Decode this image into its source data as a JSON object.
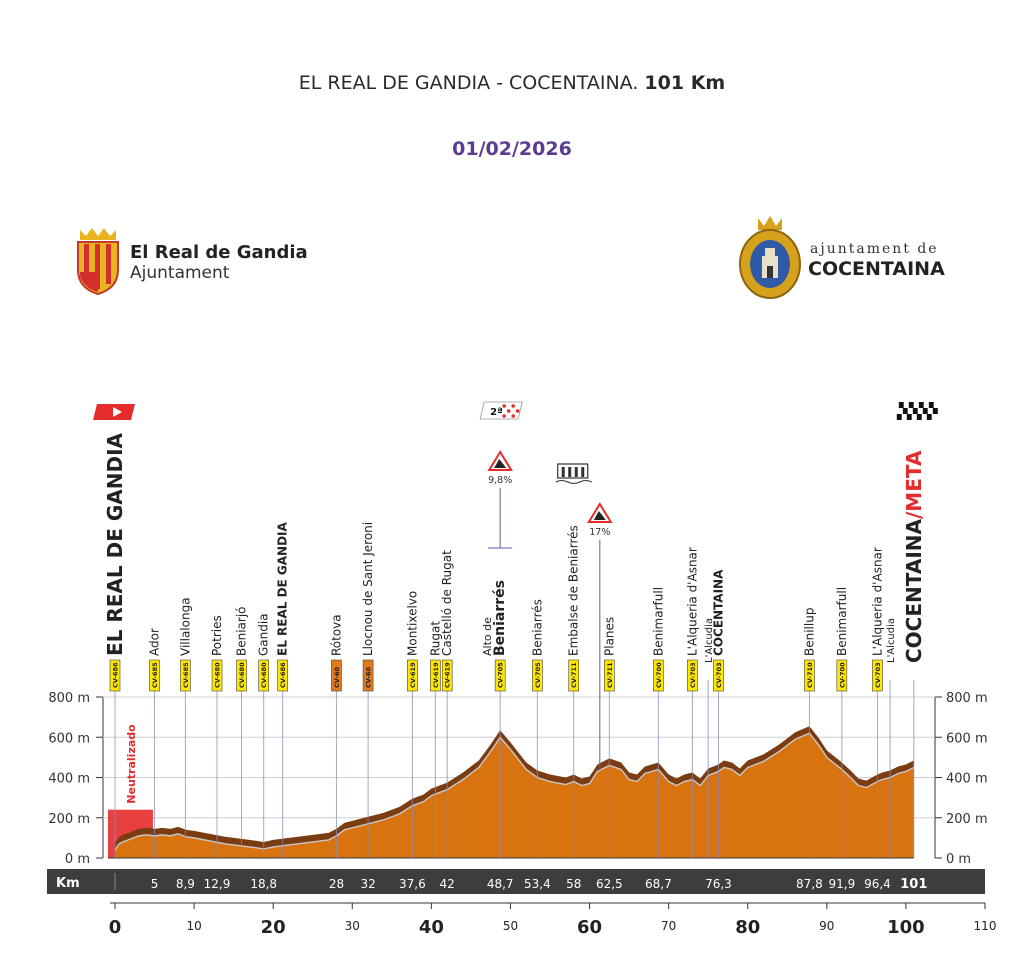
{
  "header": {
    "title_route": "EL REAL DE GANDIA - COCENTAINA.",
    "title_distance": "101 Km",
    "date": "01/02/2026"
  },
  "logos": {
    "left": {
      "name": "El Real de Gandia",
      "sub": "Ajuntament"
    },
    "right": {
      "line1": "ajuntament de",
      "line2": "COCENTAINA"
    }
  },
  "colors": {
    "profile_fill": "#d9730f",
    "profile_ridge": "#7a3c10",
    "road_tag": "#ffe600",
    "neutral_zone": "#e52b2b",
    "km_band": "#3d3d3d",
    "date": "#5b3c8e"
  },
  "chart_data": {
    "type": "area",
    "title": "EL REAL DE GANDIA - COCENTAINA. 101 Km",
    "xlabel": "",
    "ylabel": "",
    "xlim": [
      0,
      110
    ],
    "ylim": [
      0,
      800
    ],
    "y_ticks": [
      "0 m",
      "200 m",
      "400 m",
      "600 m",
      "800 m"
    ],
    "y_tick_values": [
      0,
      200,
      400,
      600,
      800
    ],
    "x_ticks": [
      "0",
      "10",
      "20",
      "30",
      "40",
      "50",
      "60",
      "70",
      "80",
      "90",
      "100",
      "110"
    ],
    "x_tick_values": [
      0,
      10,
      20,
      30,
      40,
      50,
      60,
      70,
      80,
      90,
      100,
      110
    ],
    "x_ticks_bold": [
      0,
      20,
      40,
      60,
      80,
      100
    ],
    "km_band_label": "Km",
    "neutral_label": "Neutralizado",
    "neutral_range": [
      0,
      4.8
    ],
    "neutral_max": 240,
    "elevation_km": [
      0,
      0.5,
      1,
      2,
      3,
      4,
      5,
      6,
      7,
      8,
      9,
      10,
      12,
      14,
      16,
      18,
      18.8,
      20,
      22,
      24,
      26,
      27,
      28,
      29,
      30,
      32,
      34,
      36,
      37.6,
      39,
      40,
      42,
      44,
      46,
      47.5,
      48.7,
      50,
      52,
      53.4,
      55,
      57,
      58,
      59,
      60,
      61,
      62.5,
      64,
      65,
      66,
      67,
      68.7,
      70,
      71,
      72,
      73,
      74,
      75,
      76.3,
      77,
      78,
      79,
      80,
      82,
      84,
      86,
      87.8,
      89,
      90,
      91.9,
      93,
      94,
      95,
      96.4,
      97,
      98,
      99,
      100,
      101
    ],
    "elevation_m": [
      40,
      70,
      80,
      95,
      110,
      115,
      110,
      115,
      110,
      120,
      105,
      100,
      85,
      70,
      60,
      50,
      45,
      55,
      65,
      75,
      85,
      90,
      110,
      140,
      150,
      170,
      190,
      220,
      260,
      280,
      310,
      340,
      390,
      450,
      530,
      600,
      540,
      440,
      400,
      380,
      365,
      380,
      360,
      370,
      430,
      460,
      440,
      390,
      380,
      420,
      440,
      380,
      360,
      380,
      390,
      360,
      410,
      430,
      450,
      440,
      410,
      450,
      480,
      530,
      590,
      620,
      560,
      500,
      440,
      400,
      360,
      350,
      380,
      390,
      400,
      420,
      430,
      450
    ],
    "points": [
      {
        "name": "EL REAL DE GANDIA",
        "km": 0,
        "km_label": "",
        "road": "CV-686",
        "road_orange": false,
        "bold": true,
        "big": true
      },
      {
        "name": "Ador",
        "km": 5,
        "km_label": "5",
        "road": "CV-685",
        "road_orange": false
      },
      {
        "name": "Villalonga",
        "km": 8.9,
        "km_label": "8,9",
        "road": "CV-685",
        "road_orange": false
      },
      {
        "name": "Potries",
        "km": 12.9,
        "km_label": "12,9",
        "road": "CV-680",
        "road_orange": false
      },
      {
        "name": "Beniarjó",
        "km": 16,
        "km_label": "",
        "road": "CV-680",
        "road_orange": false
      },
      {
        "name": "Gandia",
        "km": 18.8,
        "km_label": "18,8",
        "road": "CV-680",
        "road_orange": false
      },
      {
        "name": "EL REAL DE GANDIA",
        "km": 21.2,
        "km_label": "",
        "road": "CV-686",
        "road_orange": false,
        "bold": true
      },
      {
        "name": "Rótova",
        "km": 28,
        "km_label": "28",
        "road": "CV-60",
        "road_orange": true
      },
      {
        "name": "Llocnou de Sant Jeroni",
        "km": 32,
        "km_label": "32",
        "road": "CV-60",
        "road_orange": true
      },
      {
        "name": "Montixelvo",
        "km": 37.6,
        "km_label": "37,6",
        "road": "CV-619",
        "road_orange": false
      },
      {
        "name": "Rugat",
        "km": 40.5,
        "km_label": "",
        "road": "CV-619",
        "road_orange": false
      },
      {
        "name": "Castelló de Rugat",
        "km": 42,
        "km_label": "42",
        "road": "CV-619",
        "road_orange": false
      },
      {
        "name": "Beniarrés",
        "km": 48.7,
        "km_label": "48,7",
        "road": "CV-705",
        "road_orange": false,
        "prefix": "Alto de",
        "bold": true,
        "long_line": true
      },
      {
        "name": "Beniarrés",
        "km": 53.4,
        "km_label": "53,4",
        "road": "CV-705",
        "road_orange": false
      },
      {
        "name": "Embalse de Beniarrés",
        "km": 58,
        "km_label": "58",
        "road": "CV-711",
        "road_orange": false
      },
      {
        "name": "Planes",
        "km": 62.5,
        "km_label": "62,5",
        "road": "CV-711",
        "road_orange": false
      },
      {
        "name": "Benimarfull",
        "km": 68.7,
        "km_label": "68,7",
        "road": "CV-700",
        "road_orange": false
      },
      {
        "name": "L'Alqueria d'Asnar",
        "km": 73,
        "km_label": "",
        "road": "CV-703",
        "road_orange": false
      },
      {
        "name": "L'Alcudia",
        "km": 75,
        "km_label": "",
        "road": "",
        "road_orange": false,
        "small": true
      },
      {
        "name": "COCENTAINA",
        "km": 76.3,
        "km_label": "76,3",
        "road": "CV-703",
        "road_orange": false,
        "bold": true
      },
      {
        "name": "Benillup",
        "km": 87.8,
        "km_label": "87,8",
        "road": "CV-710",
        "road_orange": false
      },
      {
        "name": "Benimarfull",
        "km": 91.9,
        "km_label": "91,9",
        "road": "CV-700",
        "road_orange": false
      },
      {
        "name": "L'Alqueria d'Asnar",
        "km": 96.4,
        "km_label": "96,4",
        "road": "CV-703",
        "road_orange": false
      },
      {
        "name": "L'Alcudia",
        "km": 98,
        "km_label": "",
        "road": "",
        "road_orange": false,
        "small": true
      },
      {
        "name": "COCENTAINA",
        "km": 101,
        "km_label": "101",
        "road": "",
        "road_orange": false,
        "bold": true,
        "big": true,
        "suffix": "/META"
      }
    ],
    "climbs": [
      {
        "km": 48.7,
        "category": "2ª",
        "gradient": "9,8%"
      },
      {
        "km": 61.3,
        "category": "",
        "gradient": "17%"
      }
    ],
    "reservoir_km": 58
  }
}
